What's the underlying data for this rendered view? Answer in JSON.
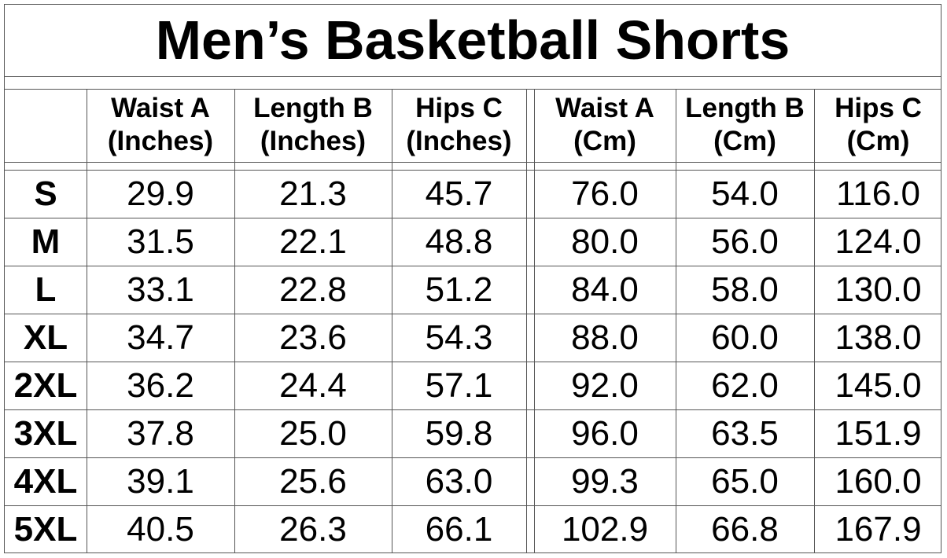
{
  "title": "Men’s Basketball Shorts",
  "headers": [
    [
      "Waist A",
      "(Inches)"
    ],
    [
      "Length B",
      "(Inches)"
    ],
    [
      "Hips C",
      "(Inches)"
    ],
    [
      "Waist A",
      "(Cm)"
    ],
    [
      "Length B",
      "(Cm)"
    ],
    [
      "Hips C",
      "(Cm)"
    ]
  ],
  "rows": [
    {
      "size": "S",
      "values": [
        "29.9",
        "21.3",
        "45.7",
        "76.0",
        "54.0",
        "116.0"
      ]
    },
    {
      "size": "M",
      "values": [
        "31.5",
        "22.1",
        "48.8",
        "80.0",
        "56.0",
        "124.0"
      ]
    },
    {
      "size": "L",
      "values": [
        "33.1",
        "22.8",
        "51.2",
        "84.0",
        "58.0",
        "130.0"
      ]
    },
    {
      "size": "XL",
      "values": [
        "34.7",
        "23.6",
        "54.3",
        "88.0",
        "60.0",
        "138.0"
      ]
    },
    {
      "size": "2XL",
      "values": [
        "36.2",
        "24.4",
        "57.1",
        "92.0",
        "62.0",
        "145.0"
      ]
    },
    {
      "size": "3XL",
      "values": [
        "37.8",
        "25.0",
        "59.8",
        "96.0",
        "63.5",
        "151.9"
      ]
    },
    {
      "size": "4XL",
      "values": [
        "39.1",
        "25.6",
        "63.0",
        "99.3",
        "65.0",
        "160.0"
      ]
    },
    {
      "size": "5XL",
      "values": [
        "40.5",
        "26.3",
        "66.1",
        "102.9",
        "66.8",
        "167.9"
      ]
    }
  ]
}
